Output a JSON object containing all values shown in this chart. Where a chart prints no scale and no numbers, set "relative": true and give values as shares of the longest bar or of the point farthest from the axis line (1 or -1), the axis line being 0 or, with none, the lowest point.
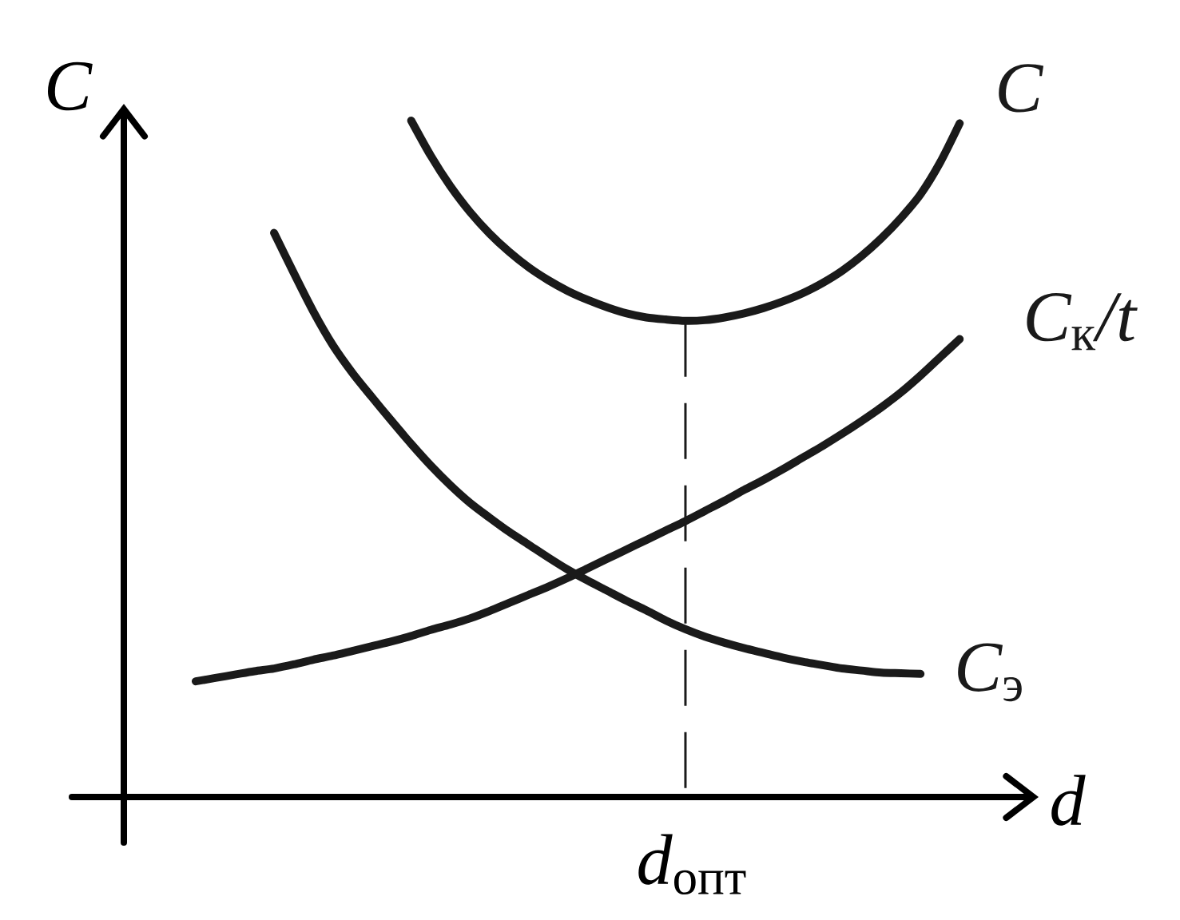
{
  "chart_data": {
    "type": "line",
    "xlabel": "d",
    "ylabel": "C",
    "relative": true,
    "categories": [
      null,
      null,
      null,
      null,
      null,
      null,
      null,
      null,
      null,
      null,
      null,
      null,
      null,
      null,
      null,
      null,
      null,
      null,
      null,
      null,
      null,
      null,
      null,
      null,
      null,
      null,
      null,
      null,
      null,
      null,
      null,
      null,
      null,
      null,
      null,
      null,
      null,
      null,
      null,
      null
    ],
    "series": [
      {
        "name": "C",
        "color": "#1a1a1a",
        "values": [
          null,
          null,
          null,
          null,
          null,
          null,
          null,
          null,
          null,
          null,
          null,
          1,
          0.948,
          0.903,
          0.865,
          0.833,
          0.806,
          0.783,
          0.764,
          0.748,
          0.735,
          0.724,
          0.715,
          0.709,
          0.706,
          0.704,
          0.705,
          0.709,
          0.715,
          0.723,
          0.733,
          0.745,
          0.76,
          0.778,
          0.8,
          0.826,
          0.856,
          0.891,
          0.938,
          0.996
        ]
      },
      {
        "name": "C$_{к}$/t",
        "color": "#1a1a1a",
        "values": [
          0.171,
          0.176,
          0.181,
          0.186,
          0.19,
          0.196,
          0.203,
          0.209,
          0.216,
          0.223,
          0.23,
          0.238,
          0.247,
          0.255,
          0.264,
          0.275,
          0.287,
          0.299,
          0.311,
          0.324,
          0.338,
          0.352,
          0.366,
          0.38,
          0.394,
          0.408,
          0.423,
          0.438,
          0.454,
          0.469,
          0.485,
          0.502,
          0.519,
          0.537,
          0.556,
          0.576,
          0.598,
          0.623,
          0.65,
          0.677
        ]
      },
      {
        "name": "C$_{э}$",
        "color": "#1a1a1a",
        "values": [
          null,
          null,
          null,
          null,
          0.834,
          0.775,
          0.718,
          0.668,
          0.627,
          0.591,
          0.556,
          0.522,
          0.49,
          0.461,
          0.435,
          0.413,
          0.392,
          0.373,
          0.354,
          0.336,
          0.32,
          0.305,
          0.29,
          0.276,
          0.261,
          0.248,
          0.237,
          0.228,
          0.22,
          0.213,
          0.206,
          0.2,
          0.195,
          0.19,
          0.187,
          0.184,
          0.183,
          0.182,
          null,
          null
        ]
      }
    ],
    "annotations": [
      "d$_{опт}$"
    ]
  }
}
